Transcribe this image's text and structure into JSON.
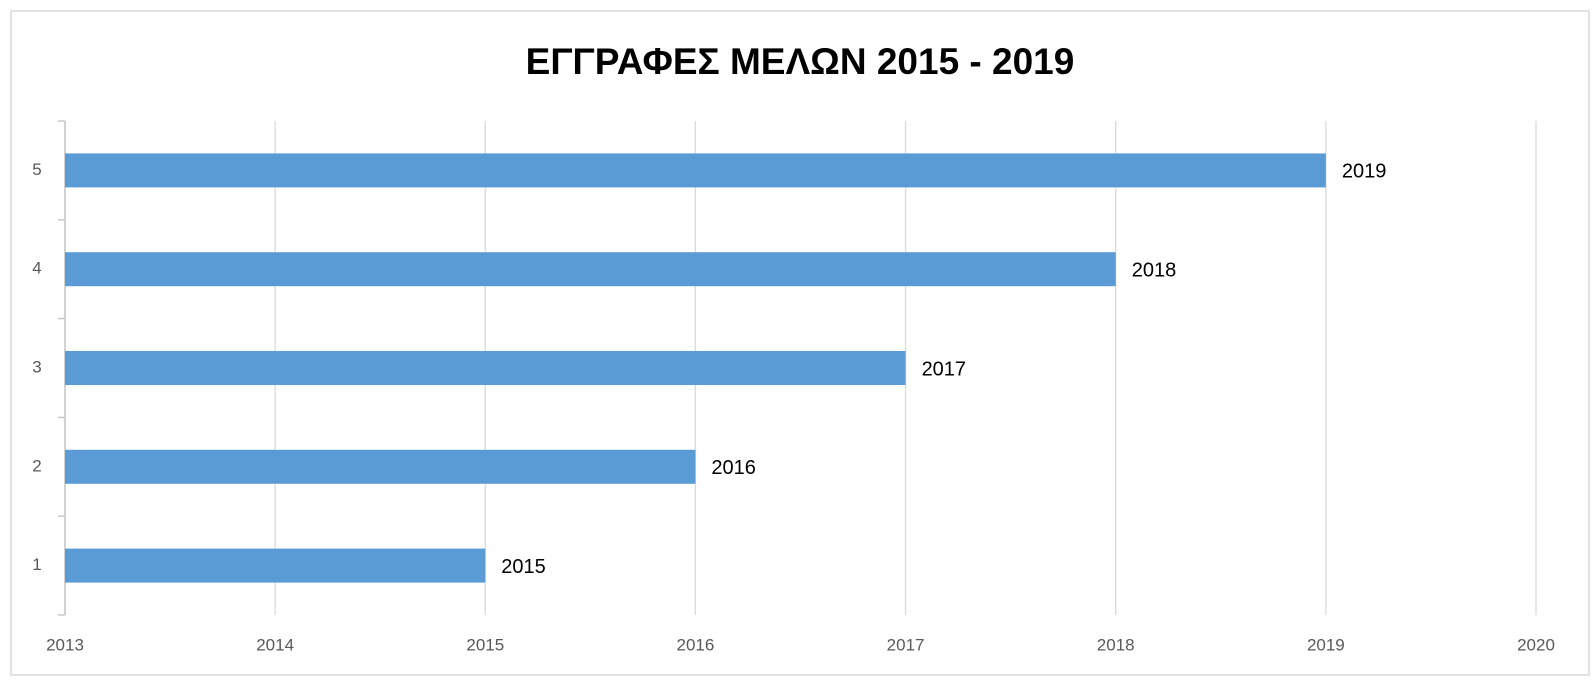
{
  "chart_data": {
    "type": "hbar",
    "title": "ΕΓΓΡΑΦΕΣ ΜΕΛΩΝ 2015 - 2019",
    "categories": [
      "1",
      "2",
      "3",
      "4",
      "5"
    ],
    "values": [
      2015,
      2016,
      2017,
      2018,
      2019
    ],
    "color": "#5b9bd5",
    "xlim": [
      2013,
      2020
    ],
    "xticks": [
      2013,
      2014,
      2015,
      2016,
      2017,
      2018,
      2019,
      2020
    ],
    "grid": true
  }
}
